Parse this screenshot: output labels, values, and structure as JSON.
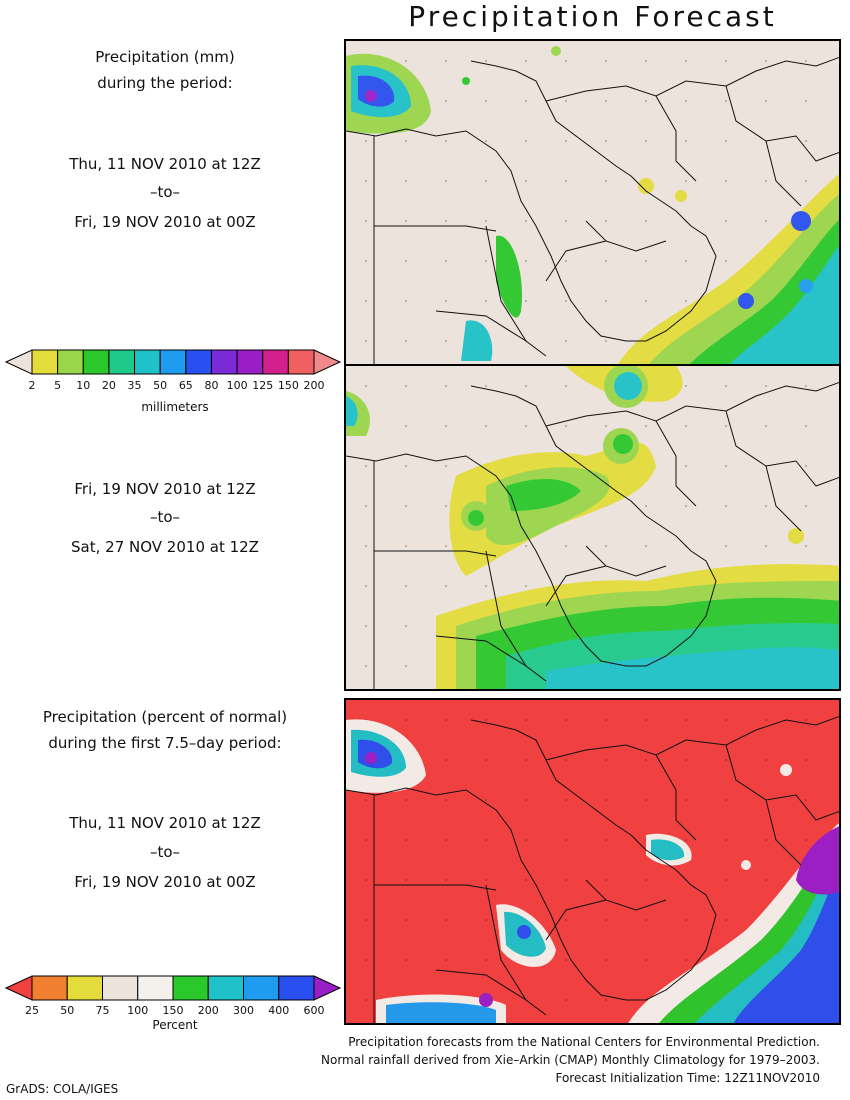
{
  "title": "Precipitation Forecast",
  "panel1": {
    "heading_line1": "Precipitation (mm)",
    "heading_line2": "during the period:",
    "start": "Thu, 11 NOV 2010 at 12Z",
    "to": "–to–",
    "end": "Fri, 19 NOV 2010 at 00Z"
  },
  "panel2": {
    "start": "Fri, 19 NOV 2010 at 12Z",
    "to": "–to–",
    "end": "Sat, 27 NOV 2010 at 12Z"
  },
  "panel3": {
    "heading_line1": "Precipitation (percent of normal)",
    "heading_line2": "during the first 7.5–day period:",
    "start": "Thu, 11 NOV 2010 at 12Z",
    "to": "–to–",
    "end": "Fri, 19 NOV 2010 at 00Z"
  },
  "mm_colorbar": {
    "unit": "millimeters",
    "labels": [
      "2",
      "5",
      "10",
      "20",
      "35",
      "50",
      "65",
      "80",
      "100",
      "125",
      "150",
      "200"
    ],
    "colors": [
      "#ece3dd",
      "#e3dc3a",
      "#9ad64a",
      "#2bc82b",
      "#1ec98a",
      "#1ec2c8",
      "#1e9cf0",
      "#2a4ff0",
      "#7a2ad6",
      "#9a1ec8",
      "#d2208c",
      "#f06060",
      "#f08a8a"
    ]
  },
  "pct_colorbar": {
    "unit": "Percent",
    "labels": [
      "25",
      "50",
      "75",
      "100",
      "150",
      "200",
      "300",
      "400",
      "600"
    ],
    "colors": [
      "#f04040",
      "#f08030",
      "#e3dc3a",
      "#ece3dd",
      "#f4f0ec",
      "#2bc82b",
      "#1ec2c8",
      "#1e9cf0",
      "#2a4ff0",
      "#9a1ec8"
    ]
  },
  "footer": {
    "line1": "Precipitation forecasts from the National Centers for Environmental Prediction.",
    "line2": "Normal rainfall derived from Xie–Arkin (CMAP) Monthly Climatology for 1979–2003.",
    "line3": "Forecast Initialization Time: 12Z11NOV2010"
  },
  "credit": "GrADS: COLA/IGES"
}
